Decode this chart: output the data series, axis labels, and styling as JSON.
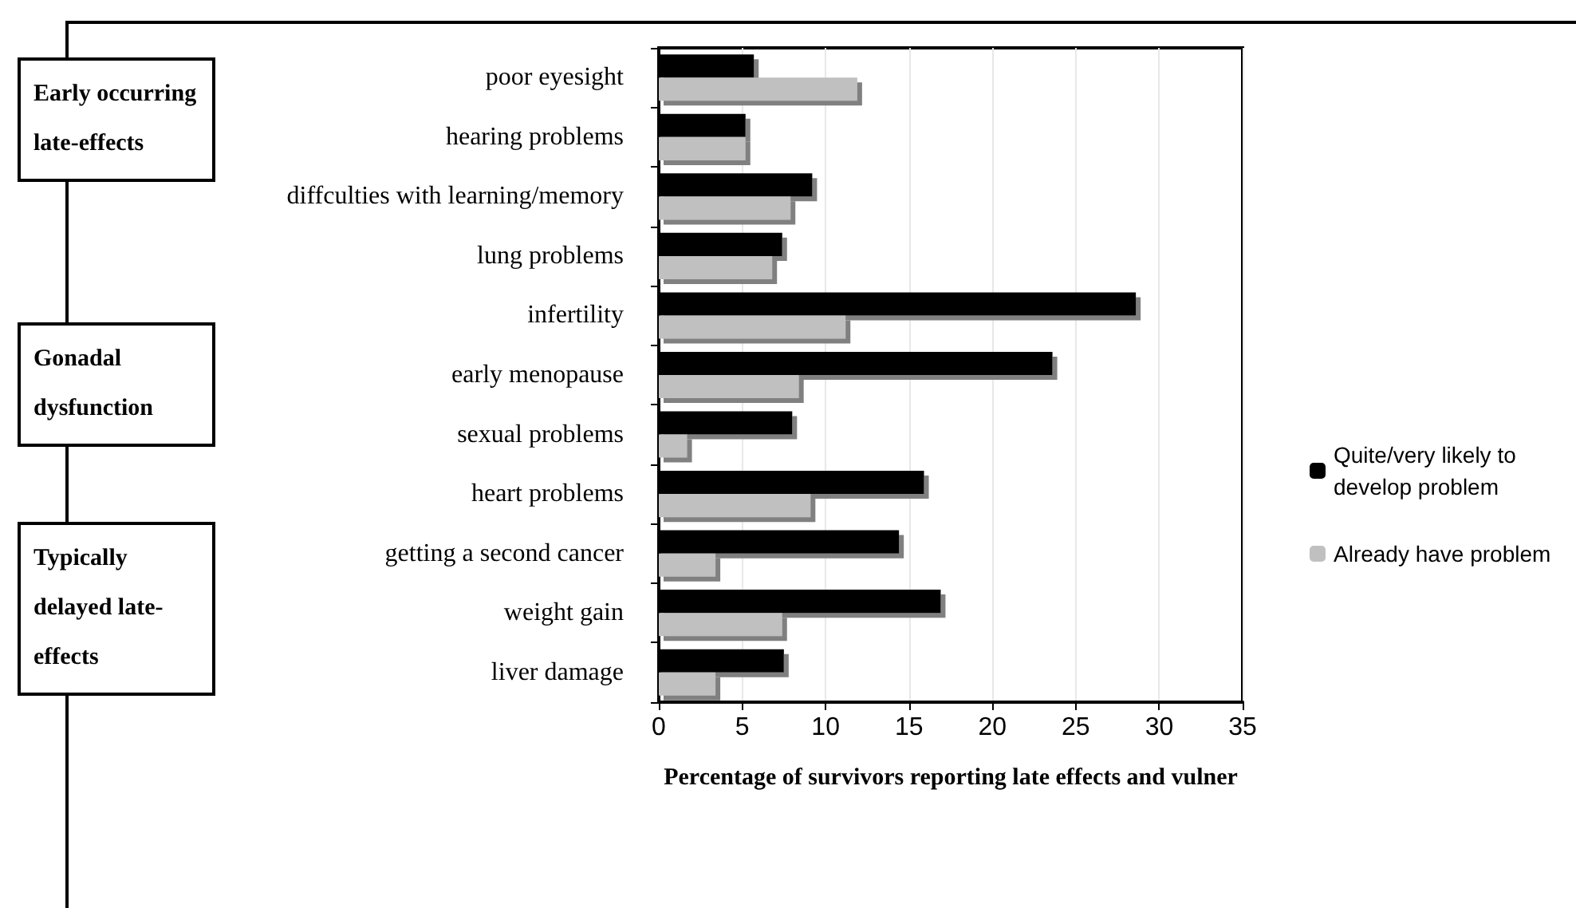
{
  "chart_data": {
    "type": "bar",
    "orientation": "horizontal",
    "xlabel": "Percentage of survivors reporting late effects and vulner",
    "categories": [
      "poor eyesight",
      "hearing problems",
      "diffculties with learning/memory",
      "lung problems",
      "infertility",
      "early menopause",
      "sexual problems",
      "heart problems",
      "getting a second cancer",
      "weight gain",
      "liver damage"
    ],
    "series": [
      {
        "name": "Quite/very likely to develop problem",
        "color": "#000000",
        "values": [
          5.7,
          5.2,
          9.2,
          7.4,
          28.6,
          23.6,
          8.0,
          15.9,
          14.4,
          16.9,
          7.5
        ]
      },
      {
        "name": "Already have problem",
        "color": "#c0c0c0",
        "values": [
          11.9,
          5.2,
          7.9,
          6.8,
          11.2,
          8.4,
          1.7,
          9.1,
          3.4,
          7.4,
          3.4
        ]
      }
    ],
    "xlim": [
      0,
      35
    ],
    "xticks": [
      0,
      5,
      10,
      15,
      20,
      25,
      30,
      35
    ],
    "grid": "x",
    "legend": "right",
    "annotations": [
      "Early occurring late-effects",
      "Gonadal dysfunction",
      "Typically delayed late-effects"
    ]
  }
}
